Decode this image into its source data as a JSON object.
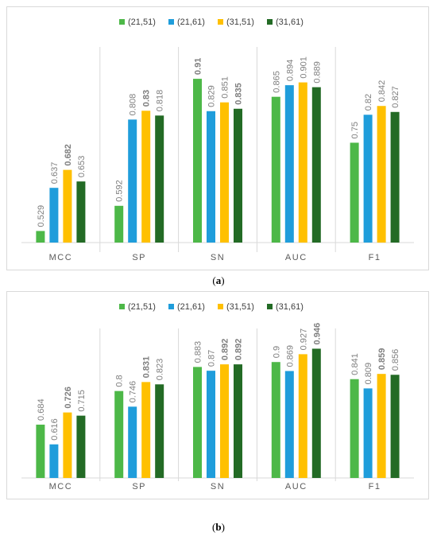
{
  "chart_data": [
    {
      "type": "bar",
      "panel_label": "a",
      "categories": [
        "MCC",
        "SP",
        "SN",
        "AUC",
        "F1"
      ],
      "series": [
        {
          "name": "(21,51)",
          "color": "#4db848",
          "values": [
            0.529,
            0.592,
            0.91,
            0.865,
            0.75
          ]
        },
        {
          "name": "(21,61)",
          "color": "#1f9ddb",
          "values": [
            0.637,
            0.808,
            0.829,
            0.894,
            0.82
          ]
        },
        {
          "name": "(31,51)",
          "color": "#ffc000",
          "values": [
            0.682,
            0.83,
            0.851,
            0.901,
            0.842
          ]
        },
        {
          "name": "(31,61)",
          "color": "#236b25",
          "values": [
            0.653,
            0.818,
            0.835,
            0.889,
            0.827
          ]
        }
      ],
      "bold_labels": [
        [
          2,
          0
        ],
        [
          2,
          1
        ],
        [
          0,
          2
        ],
        [
          3,
          2
        ],
        [
          4,
          2
        ]
      ],
      "ylim": [
        0.5,
        0.95
      ],
      "grid": "vertical separators",
      "legend_position": "top-center"
    },
    {
      "type": "bar",
      "panel_label": "b",
      "categories": [
        "MCC",
        "SP",
        "SN",
        "AUC",
        "F1"
      ],
      "series": [
        {
          "name": "(21,51)",
          "color": "#4db848",
          "values": [
            0.684,
            0.8,
            0.883,
            0.9,
            0.841
          ]
        },
        {
          "name": "(21,61)",
          "color": "#1f9ddb",
          "values": [
            0.616,
            0.746,
            0.87,
            0.869,
            0.809
          ]
        },
        {
          "name": "(31,51)",
          "color": "#ffc000",
          "values": [
            0.726,
            0.831,
            0.892,
            0.927,
            0.859
          ]
        },
        {
          "name": "(31,61)",
          "color": "#236b25",
          "values": [
            0.715,
            0.823,
            0.892,
            0.946,
            0.856
          ]
        }
      ],
      "bold_labels": [
        [
          2,
          0
        ],
        [
          2,
          1
        ],
        [
          2,
          2
        ],
        [
          3,
          2
        ],
        [
          3,
          3
        ],
        [
          2,
          4
        ]
      ],
      "ylim": [
        0.5,
        0.95
      ],
      "grid": "vertical separators",
      "legend_position": "top-center"
    }
  ],
  "captions": [
    {
      "open": "(",
      "letter": "a",
      "close": ")"
    },
    {
      "open": "(",
      "letter": "b",
      "close": ")"
    }
  ]
}
